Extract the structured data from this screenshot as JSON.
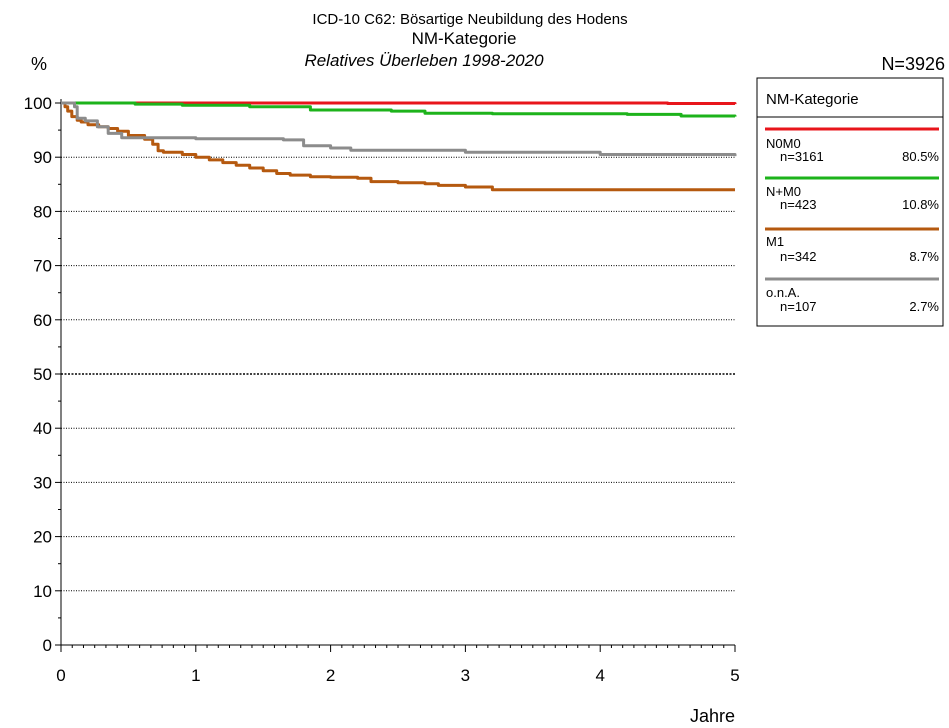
{
  "chart_data": {
    "type": "line",
    "title": "ICD-10 C62: Bösartige Neubildung des Hodens",
    "subtitle": "NM-Kategorie",
    "subtitle2": "Relatives Überleben 1998-2020",
    "ylabel": "%",
    "xlabel": "Jahre",
    "total_label": "N=3926",
    "xlim": [
      0,
      5
    ],
    "ylim": [
      0,
      100
    ],
    "x_ticks": [
      "0",
      "1",
      "2",
      "3",
      "4",
      "5"
    ],
    "y_ticks": [
      "0",
      "10",
      "20",
      "30",
      "40",
      "50",
      "60",
      "70",
      "80",
      "90",
      "100"
    ],
    "grid": "horizontal dotted",
    "legend_position": "right",
    "legend_title": "NM-Kategorie",
    "series": [
      {
        "name": "N0M0",
        "n_label": "n=3161",
        "pct_label": "80.5%",
        "color": "#e8151b",
        "points": [
          [
            0,
            100
          ],
          [
            0.5,
            100
          ],
          [
            1,
            100
          ],
          [
            1.5,
            100
          ],
          [
            2,
            100
          ],
          [
            2.5,
            100
          ],
          [
            3,
            100
          ],
          [
            3.5,
            100
          ],
          [
            4,
            100
          ],
          [
            4.5,
            99.9
          ],
          [
            5,
            99.8
          ]
        ]
      },
      {
        "name": "N+M0",
        "n_label": "n=423",
        "pct_label": "10.8%",
        "color": "#1db31b",
        "points": [
          [
            0,
            100
          ],
          [
            0.3,
            100
          ],
          [
            0.55,
            99.8
          ],
          [
            0.9,
            99.6
          ],
          [
            1.4,
            99.3
          ],
          [
            1.85,
            98.7
          ],
          [
            2.45,
            98.5
          ],
          [
            2.7,
            98.1
          ],
          [
            3.2,
            98.0
          ],
          [
            4.2,
            97.9
          ],
          [
            4.6,
            97.6
          ],
          [
            5,
            97.5
          ]
        ]
      },
      {
        "name": "M1",
        "n_label": "n=342",
        "pct_label": "8.7%",
        "color": "#b5590f",
        "points": [
          [
            0,
            100
          ],
          [
            0.03,
            99.3
          ],
          [
            0.05,
            98.5
          ],
          [
            0.08,
            97.5
          ],
          [
            0.12,
            96.8
          ],
          [
            0.15,
            96.5
          ],
          [
            0.2,
            96.0
          ],
          [
            0.28,
            95.6
          ],
          [
            0.35,
            95.3
          ],
          [
            0.42,
            94.8
          ],
          [
            0.5,
            94.0
          ],
          [
            0.62,
            93.3
          ],
          [
            0.68,
            92.4
          ],
          [
            0.72,
            91.2
          ],
          [
            0.76,
            90.9
          ],
          [
            0.9,
            90.5
          ],
          [
            1,
            90.0
          ],
          [
            1.1,
            89.5
          ],
          [
            1.2,
            89.0
          ],
          [
            1.3,
            88.5
          ],
          [
            1.4,
            88.0
          ],
          [
            1.5,
            87.5
          ],
          [
            1.6,
            87.0
          ],
          [
            1.7,
            86.7
          ],
          [
            1.85,
            86.4
          ],
          [
            2,
            86.3
          ],
          [
            2.2,
            86.1
          ],
          [
            2.3,
            85.5
          ],
          [
            2.5,
            85.3
          ],
          [
            2.7,
            85.1
          ],
          [
            2.8,
            84.8
          ],
          [
            3,
            84.5
          ],
          [
            3.2,
            84.0
          ],
          [
            4,
            84.0
          ],
          [
            5,
            84.0
          ]
        ]
      },
      {
        "name": "o.n.A.",
        "n_label": "n=107",
        "pct_label": "2.7%",
        "color": "#8c8c8c",
        "points": [
          [
            0,
            100
          ],
          [
            0.1,
            99.3
          ],
          [
            0.12,
            97.2
          ],
          [
            0.18,
            96.7
          ],
          [
            0.27,
            95.6
          ],
          [
            0.35,
            94.4
          ],
          [
            0.45,
            93.6
          ],
          [
            1,
            93.4
          ],
          [
            1.65,
            93.2
          ],
          [
            1.8,
            92.1
          ],
          [
            2,
            91.7
          ],
          [
            2.15,
            91.3
          ],
          [
            3,
            90.9
          ],
          [
            4,
            90.5
          ],
          [
            5,
            90.2
          ]
        ]
      }
    ]
  }
}
